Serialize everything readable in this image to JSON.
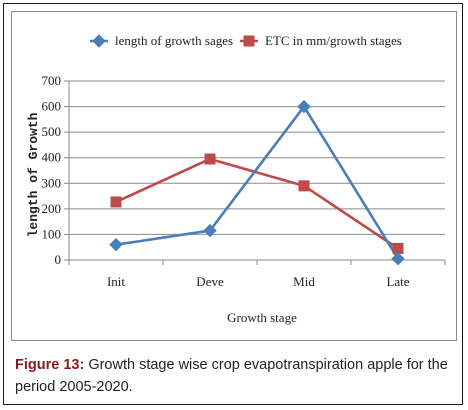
{
  "caption": {
    "label": "Figure 13:",
    "text": " Growth stage wise crop evapotranspiration apple for the period 2005-2020."
  },
  "chart_data": {
    "type": "line",
    "categories": [
      "Init",
      "Deve",
      "Mid",
      "Late"
    ],
    "series": [
      {
        "name": "length of growth sages",
        "values": [
          60,
          115,
          600,
          5
        ],
        "color": "#4a7ebb",
        "marker": "diamond"
      },
      {
        "name": "ETC in mm/growth stages",
        "values": [
          227,
          395,
          290,
          45
        ],
        "color": "#be4b48",
        "marker": "square"
      }
    ],
    "xlabel": "Growth stage",
    "ylabel": "length of Growth",
    "ylim": [
      0,
      700
    ],
    "yticks": [
      0,
      100,
      200,
      300,
      400,
      500,
      600,
      700
    ],
    "grid": true,
    "legend_position": "top"
  }
}
